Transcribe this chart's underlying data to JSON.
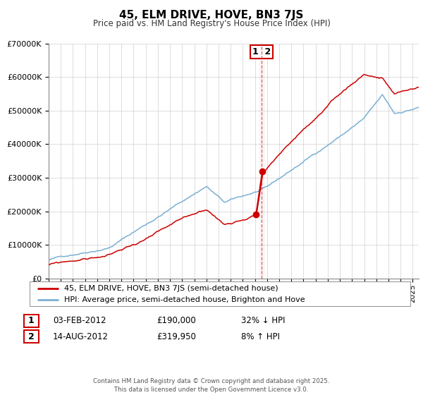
{
  "title": "45, ELM DRIVE, HOVE, BN3 7JS",
  "subtitle": "Price paid vs. HM Land Registry's House Price Index (HPI)",
  "legend_line1": "45, ELM DRIVE, HOVE, BN3 7JS (semi-detached house)",
  "legend_line2": "HPI: Average price, semi-detached house, Brighton and Hove",
  "red_color": "#cc0000",
  "blue_color": "#7ab0d4",
  "vline_color": "#cc4444",
  "annotation_box_color": "#cc0000",
  "table_row1": [
    "1",
    "03-FEB-2012",
    "£190,000",
    "32% ↓ HPI"
  ],
  "table_row2": [
    "2",
    "14-AUG-2012",
    "£319,950",
    "8% ↑ HPI"
  ],
  "footer": "Contains HM Land Registry data © Crown copyright and database right 2025.\nThis data is licensed under the Open Government Licence v3.0.",
  "point1_x": 2012.09,
  "point1_y": 190000,
  "point2_x": 2012.62,
  "point2_y": 319950,
  "vline_x": 2012.55,
  "ylim": [
    0,
    700000
  ],
  "xlim_start": 1995,
  "xlim_end": 2025.5
}
